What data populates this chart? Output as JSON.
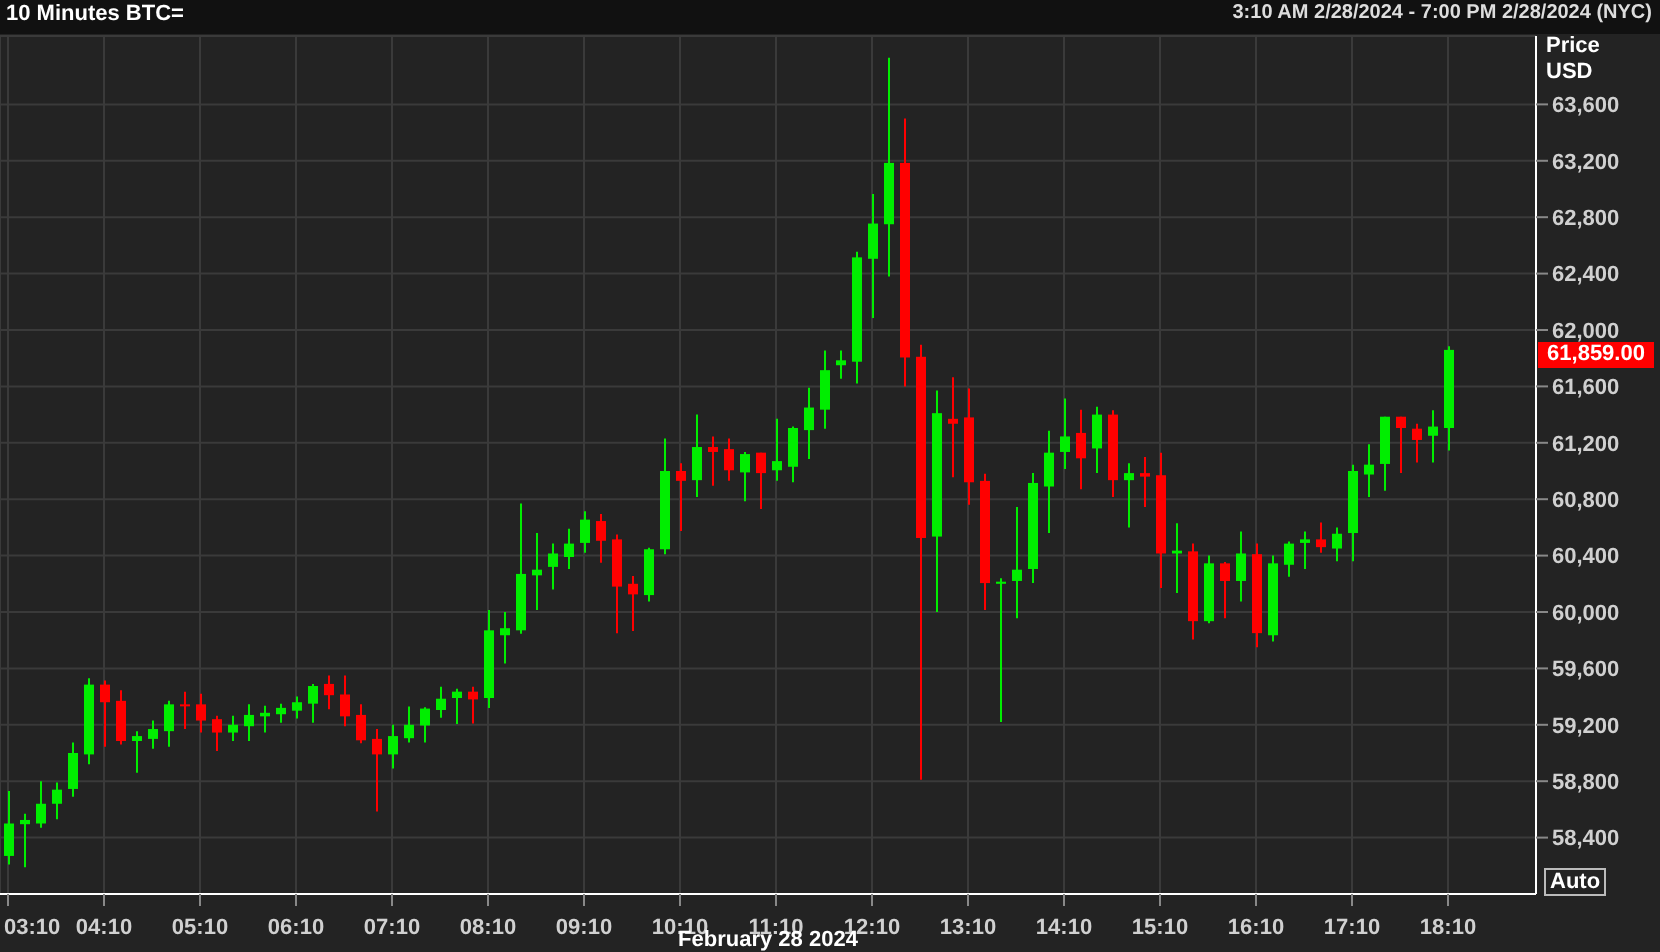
{
  "chart_data": {
    "type": "candlestick",
    "title": "10 Minutes BTC=",
    "subtitle": "3:10 AM 2/28/2024 - 7:00 PM 2/28/2024 (NYC)",
    "xlabel": "February 28 2024",
    "ylabel": "Price USD",
    "x": [
      "2024-02-28T03:10",
      "2024-02-28T03:20",
      "2024-02-28T03:30",
      "2024-02-28T03:40",
      "2024-02-28T03:50",
      "2024-02-28T04:00",
      "2024-02-28T04:10",
      "2024-02-28T04:20",
      "2024-02-28T04:30",
      "2024-02-28T04:40",
      "2024-02-28T04:50",
      "2024-02-28T05:00",
      "2024-02-28T05:10",
      "2024-02-28T05:20",
      "2024-02-28T05:30",
      "2024-02-28T05:40",
      "2024-02-28T05:50",
      "2024-02-28T06:00",
      "2024-02-28T06:10",
      "2024-02-28T06:20",
      "2024-02-28T06:30",
      "2024-02-28T06:40",
      "2024-02-28T06:50",
      "2024-02-28T07:00",
      "2024-02-28T07:10",
      "2024-02-28T07:20",
      "2024-02-28T07:30",
      "2024-02-28T07:40",
      "2024-02-28T07:50",
      "2024-02-28T08:00",
      "2024-02-28T08:10",
      "2024-02-28T08:20",
      "2024-02-28T08:30",
      "2024-02-28T08:40",
      "2024-02-28T08:50",
      "2024-02-28T09:00",
      "2024-02-28T09:10",
      "2024-02-28T09:20",
      "2024-02-28T09:30",
      "2024-02-28T09:40",
      "2024-02-28T09:50",
      "2024-02-28T10:00",
      "2024-02-28T10:10",
      "2024-02-28T10:20",
      "2024-02-28T10:30",
      "2024-02-28T10:40",
      "2024-02-28T10:50",
      "2024-02-28T11:00",
      "2024-02-28T11:10",
      "2024-02-28T11:20",
      "2024-02-28T11:30",
      "2024-02-28T11:40",
      "2024-02-28T11:50",
      "2024-02-28T12:00",
      "2024-02-28T12:10",
      "2024-02-28T12:20",
      "2024-02-28T12:30",
      "2024-02-28T12:40",
      "2024-02-28T12:50",
      "2024-02-28T13:00",
      "2024-02-28T13:10",
      "2024-02-28T13:20",
      "2024-02-28T13:30",
      "2024-02-28T13:40",
      "2024-02-28T13:50",
      "2024-02-28T14:00",
      "2024-02-28T14:10",
      "2024-02-28T14:20",
      "2024-02-28T14:30",
      "2024-02-28T14:40",
      "2024-02-28T14:50",
      "2024-02-28T15:00",
      "2024-02-28T15:10",
      "2024-02-28T15:20",
      "2024-02-28T15:30",
      "2024-02-28T15:40",
      "2024-02-28T15:50",
      "2024-02-28T16:00",
      "2024-02-28T16:10",
      "2024-02-28T16:20",
      "2024-02-28T16:30",
      "2024-02-28T16:40",
      "2024-02-28T16:50",
      "2024-02-28T17:00",
      "2024-02-28T17:10",
      "2024-02-28T17:20",
      "2024-02-28T17:30",
      "2024-02-28T17:40",
      "2024-02-28T17:50",
      "2024-02-28T18:00",
      "2024-02-28T18:10"
    ],
    "ohlc": [
      [
        58270,
        58730,
        58210,
        58500
      ],
      [
        58495,
        58570,
        58190,
        58525
      ],
      [
        58500,
        58800,
        58470,
        58640
      ],
      [
        58640,
        58790,
        58530,
        58740
      ],
      [
        58745,
        59075,
        58690,
        59000
      ],
      [
        58990,
        59530,
        58920,
        59485
      ],
      [
        59485,
        59515,
        59045,
        59360
      ],
      [
        59370,
        59445,
        59060,
        59085
      ],
      [
        59085,
        59155,
        58860,
        59120
      ],
      [
        59100,
        59230,
        59030,
        59170
      ],
      [
        59155,
        59370,
        59045,
        59345
      ],
      [
        59345,
        59435,
        59170,
        59335
      ],
      [
        59345,
        59420,
        59145,
        59230
      ],
      [
        59240,
        59265,
        59015,
        59145
      ],
      [
        59145,
        59265,
        59085,
        59200
      ],
      [
        59190,
        59345,
        59085,
        59270
      ],
      [
        59260,
        59335,
        59145,
        59285
      ],
      [
        59275,
        59350,
        59215,
        59320
      ],
      [
        59300,
        59400,
        59245,
        59360
      ],
      [
        59350,
        59490,
        59215,
        59475
      ],
      [
        59490,
        59550,
        59310,
        59410
      ],
      [
        59415,
        59550,
        59190,
        59260
      ],
      [
        59270,
        59345,
        59070,
        59090
      ],
      [
        59100,
        59170,
        58585,
        58990
      ],
      [
        58990,
        59200,
        58890,
        59120
      ],
      [
        59105,
        59330,
        59075,
        59200
      ],
      [
        59195,
        59325,
        59075,
        59315
      ],
      [
        59305,
        59470,
        59250,
        59385
      ],
      [
        59390,
        59455,
        59205,
        59435
      ],
      [
        59435,
        59470,
        59210,
        59380
      ],
      [
        59390,
        60015,
        59320,
        59870
      ],
      [
        59835,
        60000,
        59635,
        59885
      ],
      [
        59870,
        60770,
        59845,
        60270
      ],
      [
        60260,
        60560,
        60015,
        60300
      ],
      [
        60320,
        60485,
        60160,
        60415
      ],
      [
        60390,
        60590,
        60305,
        60485
      ],
      [
        60490,
        60715,
        60420,
        60655
      ],
      [
        60645,
        60695,
        60350,
        60505
      ],
      [
        60515,
        60550,
        59850,
        60180
      ],
      [
        60200,
        60255,
        59865,
        60125
      ],
      [
        60120,
        60455,
        60075,
        60445
      ],
      [
        60445,
        61230,
        60410,
        61000
      ],
      [
        61000,
        61055,
        60575,
        60930
      ],
      [
        60935,
        61400,
        60815,
        61170
      ],
      [
        61170,
        61245,
        60895,
        61135
      ],
      [
        61155,
        61230,
        60930,
        61005
      ],
      [
        60990,
        61135,
        60785,
        61120
      ],
      [
        61130,
        61130,
        60730,
        60985
      ],
      [
        61005,
        61370,
        60930,
        61070
      ],
      [
        61030,
        61315,
        60920,
        61305
      ],
      [
        61290,
        61590,
        61085,
        61450
      ],
      [
        61435,
        61855,
        61300,
        61715
      ],
      [
        61750,
        61855,
        61655,
        61785
      ],
      [
        61775,
        62555,
        61620,
        62515
      ],
      [
        62505,
        62965,
        62085,
        62755
      ],
      [
        62750,
        63930,
        62380,
        63185
      ],
      [
        63185,
        63500,
        61600,
        61805
      ],
      [
        61810,
        61895,
        58810,
        60525
      ],
      [
        60535,
        61570,
        60000,
        61410
      ],
      [
        61370,
        61665,
        60955,
        61335
      ],
      [
        61380,
        61585,
        60760,
        60920
      ],
      [
        60930,
        60980,
        60015,
        60205
      ],
      [
        60200,
        60240,
        59220,
        60215
      ],
      [
        60220,
        60745,
        59955,
        60300
      ],
      [
        60305,
        60985,
        60205,
        60915
      ],
      [
        60890,
        61285,
        60560,
        61130
      ],
      [
        61135,
        61515,
        61015,
        61245
      ],
      [
        61270,
        61435,
        60870,
        61090
      ],
      [
        61160,
        61455,
        60985,
        61400
      ],
      [
        61400,
        61430,
        60815,
        60935
      ],
      [
        60935,
        61055,
        60600,
        60985
      ],
      [
        60985,
        61100,
        60745,
        60960
      ],
      [
        60970,
        61130,
        60170,
        60415
      ],
      [
        60415,
        60630,
        60135,
        60435
      ],
      [
        60430,
        60485,
        59805,
        59935
      ],
      [
        59935,
        60400,
        59920,
        60345
      ],
      [
        60345,
        60355,
        59955,
        60220
      ],
      [
        60220,
        60570,
        60075,
        60415
      ],
      [
        60410,
        60485,
        59750,
        59850
      ],
      [
        59835,
        60400,
        59790,
        60345
      ],
      [
        60335,
        60500,
        60250,
        60485
      ],
      [
        60490,
        60570,
        60305,
        60515
      ],
      [
        60515,
        60635,
        60420,
        60460
      ],
      [
        60450,
        60600,
        60360,
        60555
      ],
      [
        60560,
        61045,
        60360,
        61000
      ],
      [
        60975,
        61190,
        60815,
        61045
      ],
      [
        61050,
        61385,
        60860,
        61385
      ],
      [
        61385,
        61385,
        60985,
        61305
      ],
      [
        61300,
        61335,
        61060,
        61220
      ],
      [
        61250,
        61430,
        61060,
        61315
      ],
      [
        61305,
        61885,
        61145,
        61859
      ]
    ],
    "colors": [
      "#00ee00",
      "#00ee00",
      "#00ee00",
      "#00ee00",
      "#00ee00",
      "#00ee00",
      "#ff0000",
      "#ff0000",
      "#00ee00",
      "#00ee00",
      "#00ee00",
      "#ff0000",
      "#ff0000",
      "#ff0000",
      "#00ee00",
      "#00ee00",
      "#00ee00",
      "#00ee00",
      "#00ee00",
      "#00ee00",
      "#ff0000",
      "#ff0000",
      "#ff0000",
      "#ff0000",
      "#00ee00",
      "#00ee00",
      "#00ee00",
      "#00ee00",
      "#00ee00",
      "#ff0000",
      "#00ee00",
      "#00ee00",
      "#00ee00",
      "#00ee00",
      "#00ee00",
      "#00ee00",
      "#00ee00",
      "#ff0000",
      "#ff0000",
      "#ff0000",
      "#00ee00",
      "#00ee00",
      "#ff0000",
      "#00ee00",
      "#ff0000",
      "#ff0000",
      "#00ee00",
      "#ff0000",
      "#00ee00",
      "#00ee00",
      "#00ee00",
      "#00ee00",
      "#00ee00",
      "#00ee00",
      "#00ee00",
      "#00ee00",
      "#ff0000",
      "#ff0000",
      "#00ee00",
      "#ff0000",
      "#ff0000",
      "#ff0000",
      "#00ee00",
      "#00ee00",
      "#00ee00",
      "#00ee00",
      "#00ee00",
      "#ff0000",
      "#00ee00",
      "#ff0000",
      "#00ee00",
      "#ff0000",
      "#ff0000",
      "#00ee00",
      "#ff0000",
      "#00ee00",
      "#ff0000",
      "#00ee00",
      "#ff0000",
      "#00ee00",
      "#00ee00",
      "#00ee00",
      "#ff0000",
      "#00ee00",
      "#00ee00",
      "#00ee00",
      "#00ee00",
      "#ff0000",
      "#ff0000",
      "#00ee00",
      "#00ee00"
    ],
    "xlim": [
      "2024-02-28T03:05",
      "2024-02-28T19:05"
    ],
    "xticks": [
      {
        "value": "2024-02-28T03:10",
        "label": "03:10"
      },
      {
        "value": "2024-02-28T04:10",
        "label": "04:10"
      },
      {
        "value": "2024-02-28T05:10",
        "label": "05:10"
      },
      {
        "value": "2024-02-28T06:10",
        "label": "06:10"
      },
      {
        "value": "2024-02-28T07:10",
        "label": "07:10"
      },
      {
        "value": "2024-02-28T08:10",
        "label": "08:10"
      },
      {
        "value": "2024-02-28T09:10",
        "label": "09:10"
      },
      {
        "value": "2024-02-28T10:10",
        "label": "10:10"
      },
      {
        "value": "2024-02-28T11:10",
        "label": "11:10"
      },
      {
        "value": "2024-02-28T12:10",
        "label": "12:10"
      },
      {
        "value": "2024-02-28T13:10",
        "label": "13:10"
      },
      {
        "value": "2024-02-28T14:10",
        "label": "14:10"
      },
      {
        "value": "2024-02-28T15:10",
        "label": "15:10"
      },
      {
        "value": "2024-02-28T16:10",
        "label": "16:10"
      },
      {
        "value": "2024-02-28T17:10",
        "label": "17:10"
      },
      {
        "value": "2024-02-28T18:10",
        "label": "18:10"
      }
    ],
    "ylim": [
      58000,
      64085
    ],
    "yticks": [
      {
        "value": 58400,
        "label": "58,400"
      },
      {
        "value": 58800,
        "label": "58,800"
      },
      {
        "value": 59200,
        "label": "59,200"
      },
      {
        "value": 59600,
        "label": "59,600"
      },
      {
        "value": 60000,
        "label": "60,000"
      },
      {
        "value": 60400,
        "label": "60,400"
      },
      {
        "value": 60800,
        "label": "60,800"
      },
      {
        "value": 61200,
        "label": "61,200"
      },
      {
        "value": 61600,
        "label": "61,600"
      },
      {
        "value": 62000,
        "label": "62,000"
      },
      {
        "value": 62400,
        "label": "62,400"
      },
      {
        "value": 62800,
        "label": "62,800"
      },
      {
        "value": 63200,
        "label": "63,200"
      },
      {
        "value": 63600,
        "label": "63,600"
      }
    ],
    "grid": true,
    "annotations": [
      "61,859.00",
      "Auto"
    ]
  }
}
